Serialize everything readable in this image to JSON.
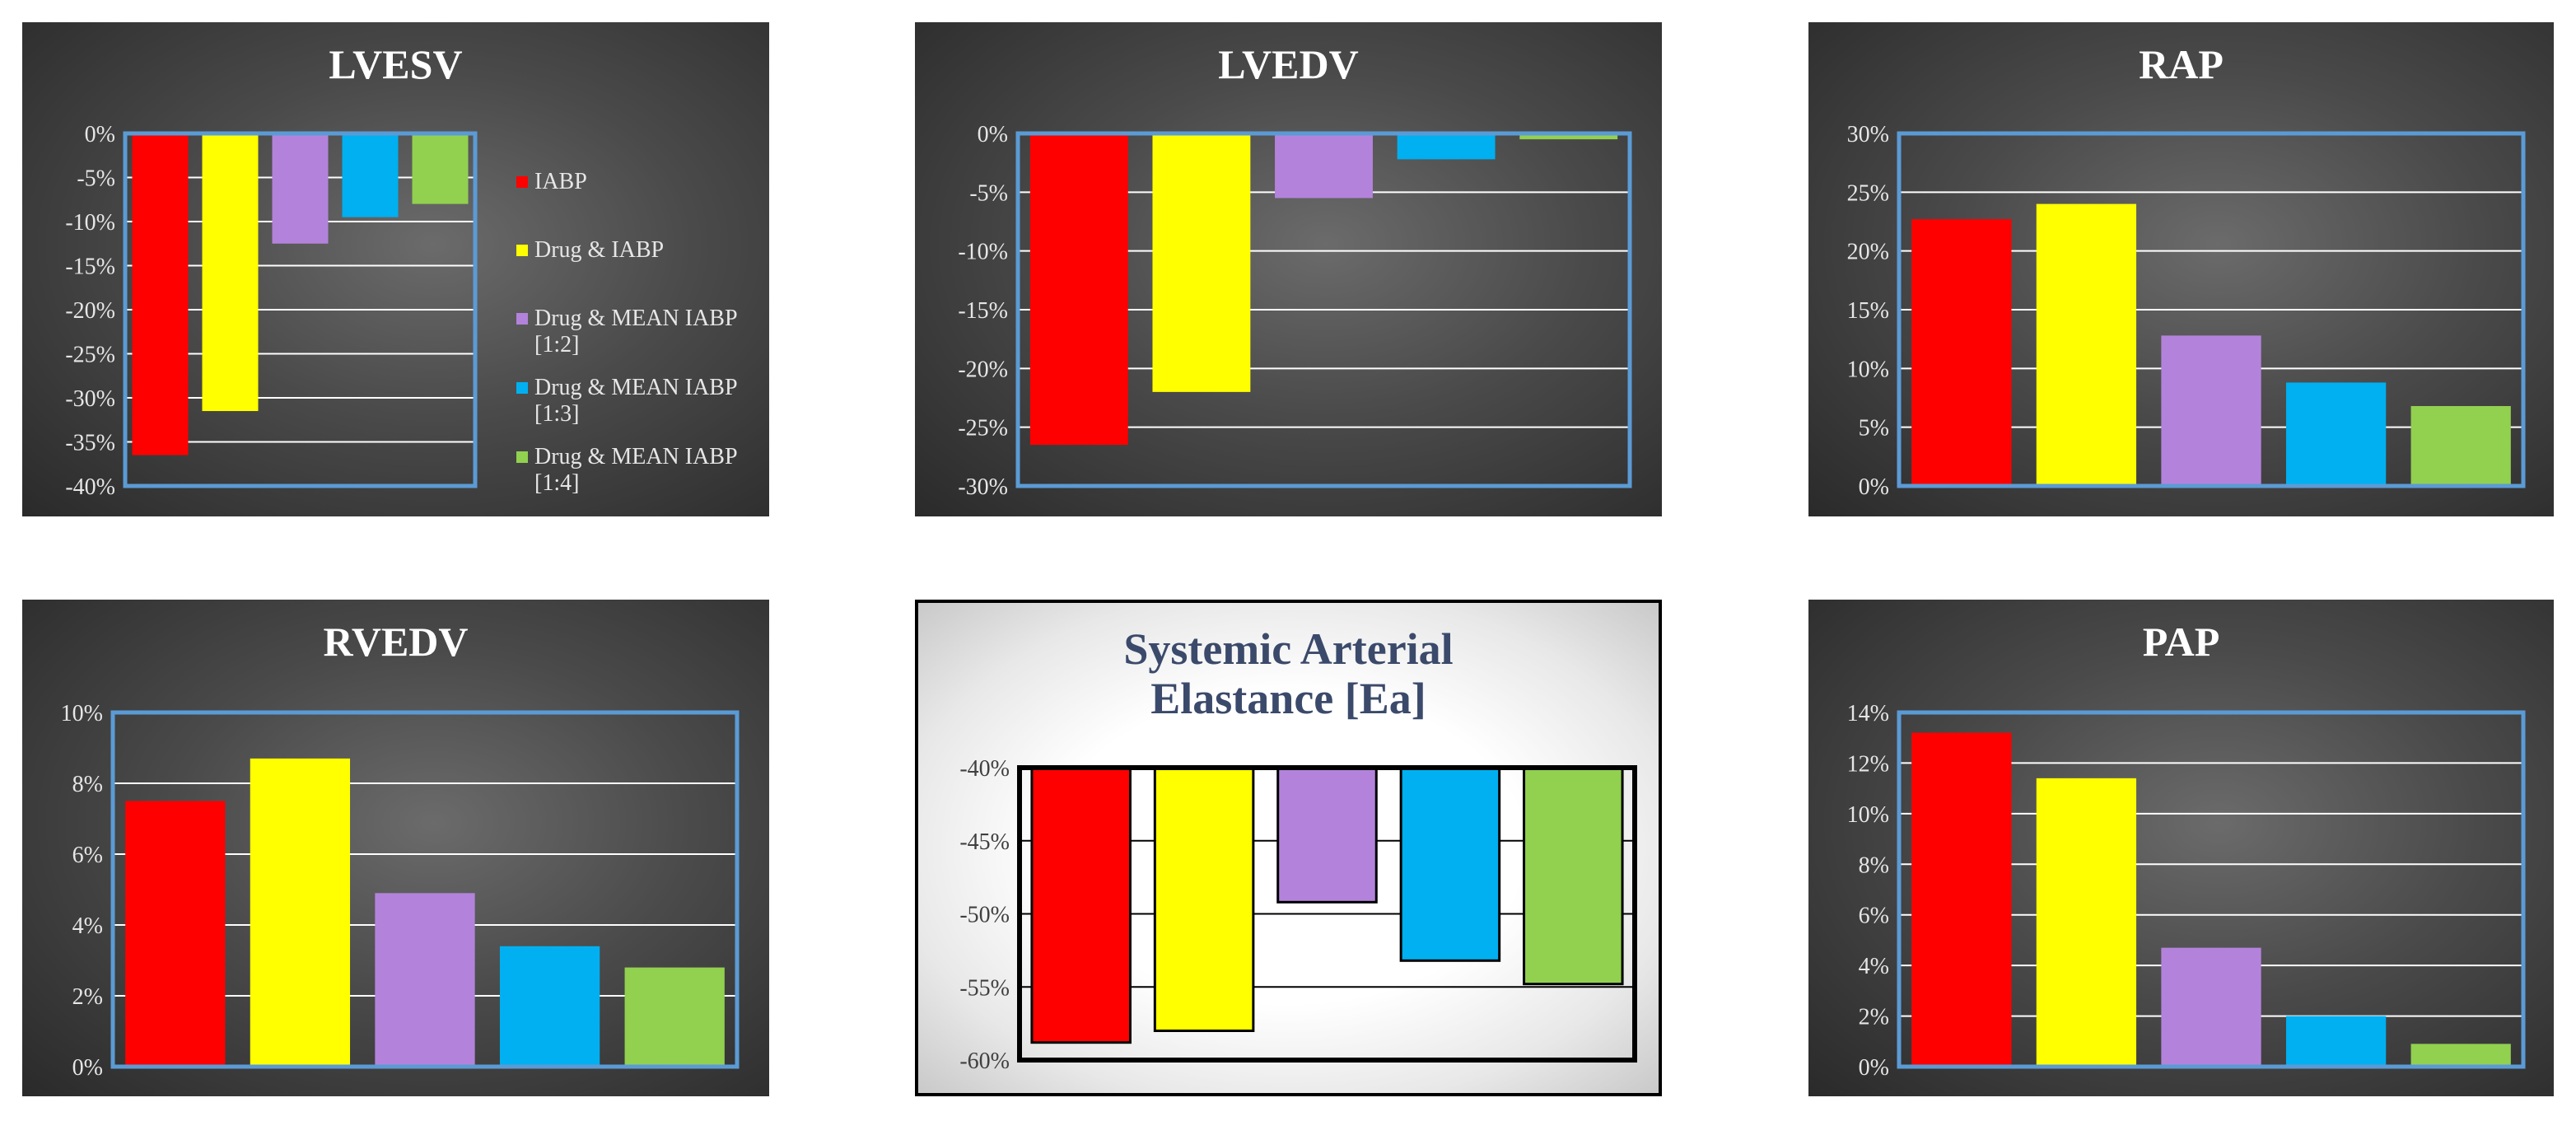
{
  "legend": {
    "items": [
      {
        "label": "IABP",
        "color": "#ff0000"
      },
      {
        "label": "Drug & IABP",
        "color": "#ffff00"
      },
      {
        "label": "Drug & MEAN IABP [1:2]",
        "color": "#b383db"
      },
      {
        "label": "Drug & MEAN IABP [1:3]",
        "color": "#00b0f0"
      },
      {
        "label": "Drug & MEAN IABP [1:4]",
        "color": "#92d050"
      }
    ]
  },
  "chart_data": [
    {
      "id": "lvesv",
      "type": "bar",
      "title": "LVESV",
      "theme": "dark",
      "categories": [
        "IABP",
        "Drug & IABP",
        "Drug & MEAN IABP [1:2]",
        "Drug & MEAN IABP [1:3]",
        "Drug & MEAN IABP [1:4]"
      ],
      "values": [
        -36.5,
        -31.5,
        -12.5,
        -9.5,
        -8
      ],
      "ylim": [
        -40,
        0
      ],
      "ticks": [
        0,
        -5,
        -10,
        -15,
        -20,
        -25,
        -30,
        -35,
        -40
      ],
      "tick_labels": [
        "0%",
        "-5%",
        "-10%",
        "-15%",
        "-20%",
        "-25%",
        "-30%",
        "-35%",
        "-40%"
      ],
      "legend": "right"
    },
    {
      "id": "lvedv",
      "type": "bar",
      "title": "LVEDV",
      "theme": "dark",
      "categories": [
        "IABP",
        "Drug & IABP",
        "Drug & MEAN IABP [1:2]",
        "Drug & MEAN IABP [1:3]",
        "Drug & MEAN IABP [1:4]"
      ],
      "values": [
        -26.5,
        -22,
        -5.5,
        -2.2,
        -0.5
      ],
      "ylim": [
        -30,
        0
      ],
      "ticks": [
        0,
        -5,
        -10,
        -15,
        -20,
        -25,
        -30
      ],
      "tick_labels": [
        "0%",
        "-5%",
        "-10%",
        "-15%",
        "-20%",
        "-25%",
        "-30%"
      ]
    },
    {
      "id": "rap",
      "type": "bar",
      "title": "RAP",
      "theme": "dark",
      "categories": [
        "IABP",
        "Drug & IABP",
        "Drug & MEAN IABP [1:2]",
        "Drug & MEAN IABP [1:3]",
        "Drug & MEAN IABP [1:4]"
      ],
      "values": [
        22.7,
        24,
        12.8,
        8.8,
        6.8
      ],
      "ylim": [
        0,
        30
      ],
      "ticks": [
        0,
        5,
        10,
        15,
        20,
        25,
        30
      ],
      "tick_labels": [
        "0%",
        "5%",
        "10%",
        "15%",
        "20%",
        "25%",
        "30%"
      ]
    },
    {
      "id": "rvedv",
      "type": "bar",
      "title": "RVEDV",
      "theme": "dark",
      "categories": [
        "IABP",
        "Drug & IABP",
        "Drug & MEAN IABP [1:2]",
        "Drug & MEAN IABP [1:3]",
        "Drug & MEAN IABP [1:4]"
      ],
      "values": [
        7.5,
        8.7,
        4.9,
        3.4,
        2.8
      ],
      "ylim": [
        0,
        10
      ],
      "ticks": [
        0,
        2,
        4,
        6,
        8,
        10
      ],
      "tick_labels": [
        "0%",
        "2%",
        "4%",
        "6%",
        "8%",
        "10%"
      ]
    },
    {
      "id": "ea",
      "type": "bar",
      "title": "Systemic Arterial Elastance [Ea]",
      "theme": "light",
      "categories": [
        "IABP",
        "Drug & IABP",
        "Drug & MEAN IABP [1:2]",
        "Drug & MEAN IABP [1:3]",
        "Drug & MEAN IABP [1:4]"
      ],
      "values": [
        -58.8,
        -58,
        -49.2,
        -53.2,
        -54.8
      ],
      "ylim": [
        -60,
        -40
      ],
      "baseline": -40,
      "ticks": [
        -40,
        -45,
        -50,
        -55,
        -60
      ],
      "tick_labels": [
        "-40%",
        "-45%",
        "-50%",
        "-55%",
        "-60%"
      ]
    },
    {
      "id": "pap",
      "type": "bar",
      "title": "PAP",
      "theme": "dark",
      "categories": [
        "IABP",
        "Drug & IABP",
        "Drug & MEAN IABP [1:2]",
        "Drug & MEAN IABP [1:3]",
        "Drug & MEAN IABP [1:4]"
      ],
      "values": [
        13.2,
        11.4,
        4.7,
        2,
        0.9
      ],
      "ylim": [
        0,
        14
      ],
      "ticks": [
        0,
        2,
        4,
        6,
        8,
        10,
        12,
        14
      ],
      "tick_labels": [
        "0%",
        "2%",
        "4%",
        "6%",
        "8%",
        "10%",
        "12%",
        "14%"
      ]
    }
  ]
}
